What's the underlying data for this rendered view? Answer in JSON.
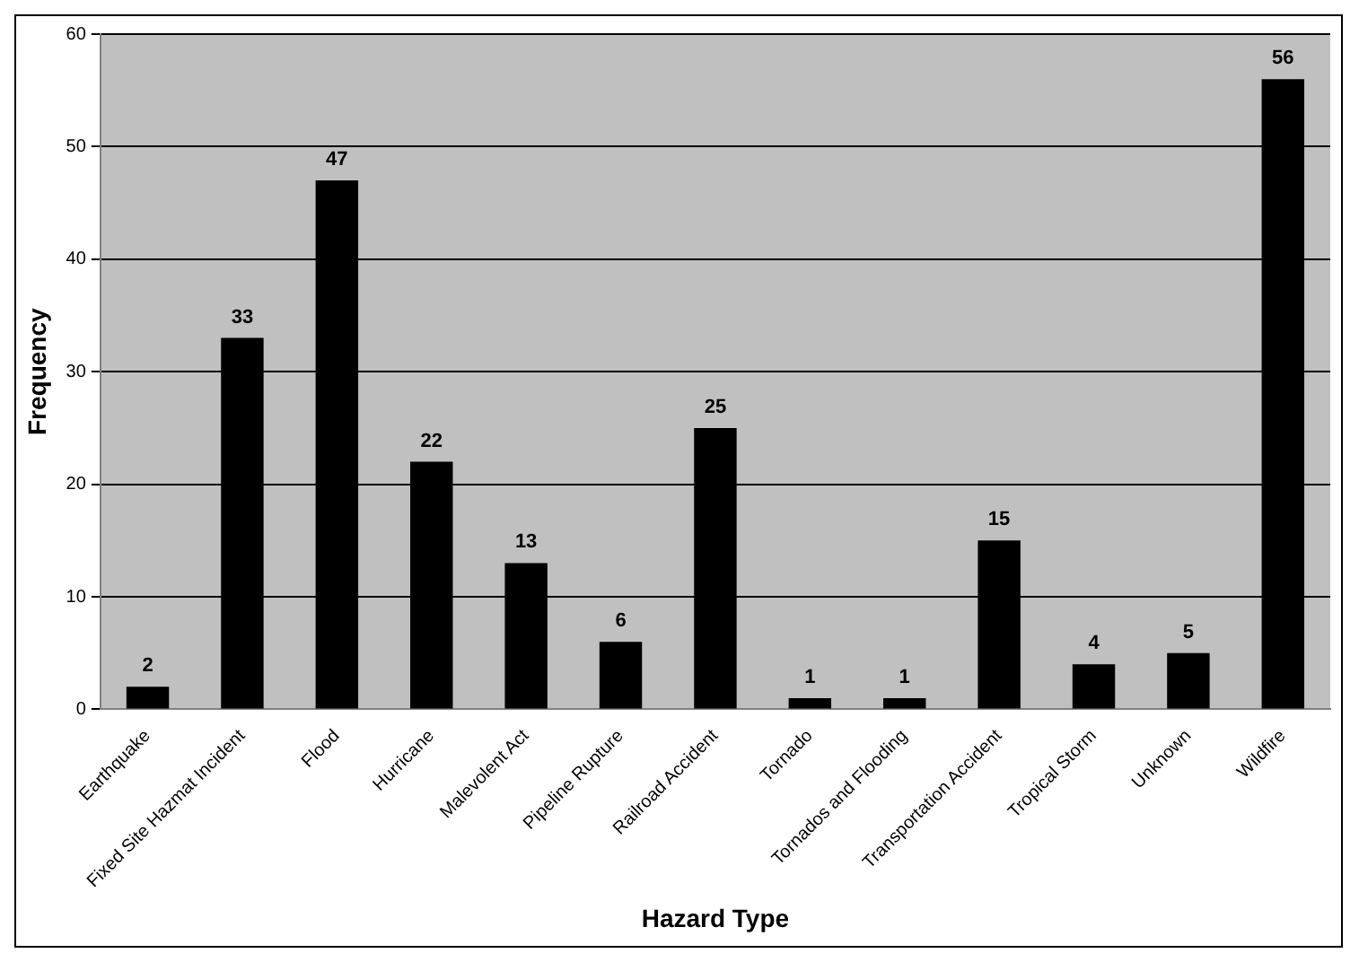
{
  "chart_data": {
    "type": "bar",
    "xlabel": "Hazard Type",
    "ylabel": "Frequency",
    "categories": [
      "Earthquake",
      "Fixed Site Hazmat Incident",
      "Flood",
      "Hurricane",
      "Malevolent Act",
      "Pipeline Rupture",
      "Railroad Accident",
      "Tornado",
      "Tornados and Flooding",
      "Transportation Accident",
      "Tropical Storm",
      "Unknown",
      "Wildfire"
    ],
    "values": [
      2,
      33,
      47,
      22,
      13,
      6,
      25,
      1,
      1,
      15,
      4,
      5,
      56
    ],
    "color": "#000000",
    "ylim": [
      0,
      60
    ],
    "yticks": [
      0,
      10,
      20,
      30,
      40,
      50,
      60
    ],
    "grid": "y",
    "data_labels": true
  }
}
